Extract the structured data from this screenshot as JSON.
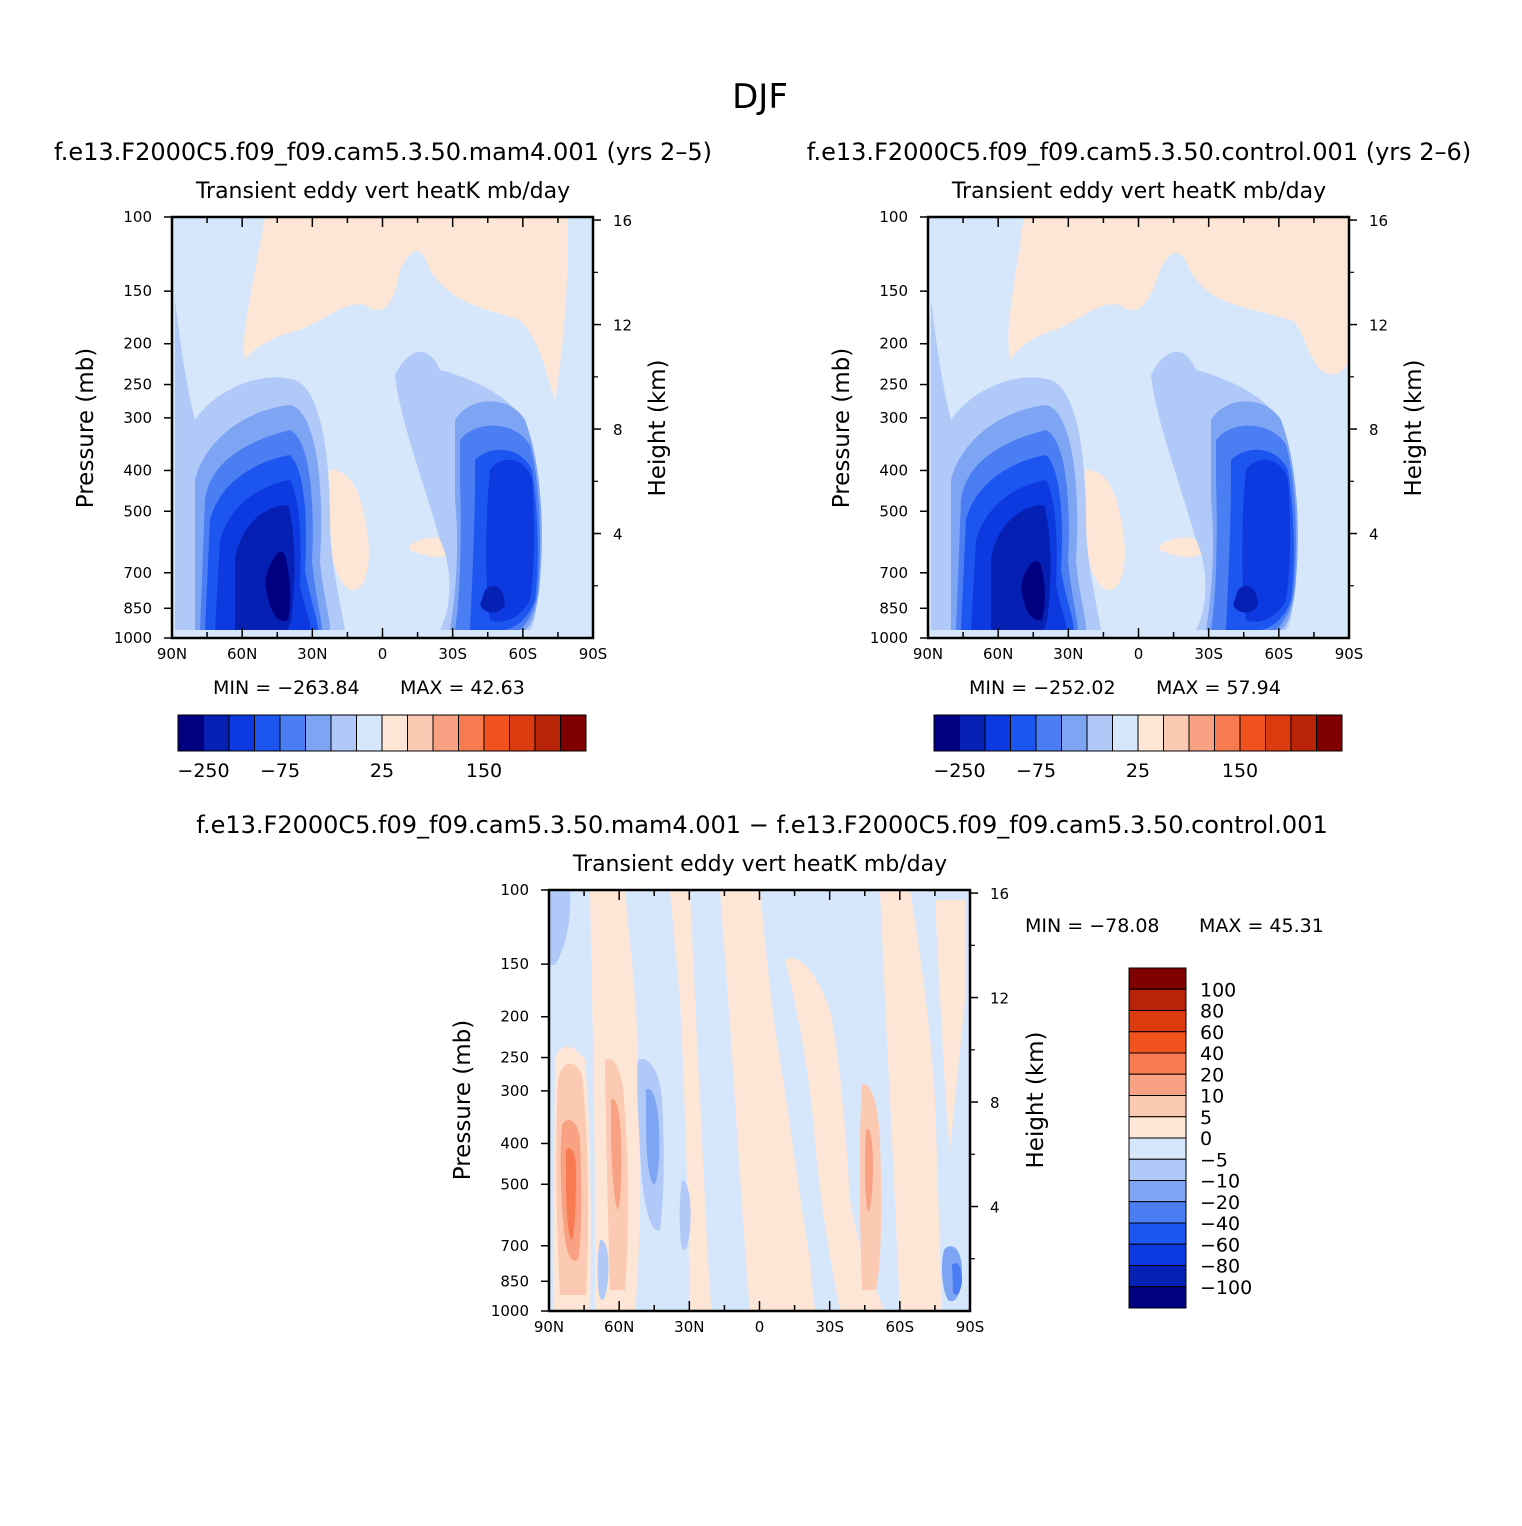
{
  "figure": {
    "title": "DJF",
    "case_a_label": "f.e13.F2000C5.f09_f09.cam5.3.50.mam4.001 (yrs 2–5)",
    "case_b_label": "f.e13.F2000C5.f09_f09.cam5.3.50.control.001 (yrs 2–6)",
    "diff_label": "f.e13.F2000C5.f09_f09.cam5.3.50.mam4.001 − f.e13.F2000C5.f09_f09.cam5.3.50.control.001"
  },
  "colors": {
    "cmap": [
      "#000081",
      "#0720b4",
      "#0c3ae0",
      "#1d55f0",
      "#4a7ef2",
      "#7ea4f4",
      "#b0c9f8",
      "#d7e7fb",
      "#fde6d5",
      "#fccab2",
      "#f9a283",
      "#f77a50",
      "#f2521e",
      "#dc3a0f",
      "#b72506",
      "#800000"
    ],
    "frame": "#000000"
  },
  "chart_data": [
    {
      "id": "mam4",
      "type": "heatmap",
      "title": "Transient eddy vert heatK mb/day",
      "xlabel": "",
      "ylabel": "Pressure (mb)",
      "ylabel_right": "Height (km)",
      "x_ticks": [
        "90N",
        "60N",
        "30N",
        "0",
        "30S",
        "60S",
        "90S"
      ],
      "y_ticks": [
        "100",
        "150",
        "200",
        "250",
        "300",
        "400",
        "500",
        "700",
        "850",
        "1000"
      ],
      "y_ticks_right": [
        "16",
        "12",
        "8",
        "4"
      ],
      "min_label": "MIN = −263.84",
      "max_label": "MAX =  42.63",
      "colorbar_labels": [
        "−250",
        "−75",
        "25",
        "150"
      ],
      "scale_min": -300,
      "scale_max": 150,
      "features": [
        {
          "lat": 47,
          "p": 700,
          "value": -260,
          "wlat": 18,
          "wp": 360
        },
        {
          "lat": -55,
          "p": 650,
          "value": -200,
          "wlat": 12,
          "wp": 380
        },
        {
          "lat": 25,
          "p": 450,
          "value": 30,
          "wlat": 6,
          "wp": 180
        }
      ]
    },
    {
      "id": "control",
      "type": "heatmap",
      "title": "Transient eddy vert heatK mb/day",
      "xlabel": "",
      "ylabel": "Pressure (mb)",
      "ylabel_right": "Height (km)",
      "x_ticks": [
        "90N",
        "60N",
        "30N",
        "0",
        "30S",
        "60S",
        "90S"
      ],
      "y_ticks": [
        "100",
        "150",
        "200",
        "250",
        "300",
        "400",
        "500",
        "700",
        "850",
        "1000"
      ],
      "y_ticks_right": [
        "16",
        "12",
        "8",
        "4"
      ],
      "min_label": "MIN = −252.02",
      "max_label": "MAX =  57.94",
      "colorbar_labels": [
        "−250",
        "−75",
        "25",
        "150"
      ],
      "scale_min": -300,
      "scale_max": 150,
      "features": [
        {
          "lat": 47,
          "p": 700,
          "value": -250,
          "wlat": 18,
          "wp": 360
        },
        {
          "lat": -55,
          "p": 650,
          "value": -195,
          "wlat": 12,
          "wp": 380
        },
        {
          "lat": 25,
          "p": 450,
          "value": 30,
          "wlat": 6,
          "wp": 180
        }
      ]
    },
    {
      "id": "diff",
      "type": "heatmap",
      "title": "Transient eddy vert heatK mb/day",
      "xlabel": "",
      "ylabel": "Pressure (mb)",
      "ylabel_right": "Height (km)",
      "x_ticks": [
        "90N",
        "60N",
        "30N",
        "0",
        "30S",
        "60S",
        "90S"
      ],
      "y_ticks": [
        "100",
        "150",
        "200",
        "250",
        "300",
        "400",
        "500",
        "700",
        "850",
        "1000"
      ],
      "y_ticks_right": [
        "16",
        "12",
        "8",
        "4"
      ],
      "min_label": "MIN = −78.08",
      "max_label": "MAX =  45.31",
      "colorbar_labels": [
        "100",
        "80",
        "60",
        "40",
        "20",
        "10",
        "5",
        "0",
        "−5",
        "−10",
        "−20",
        "−40",
        "−60",
        "−80",
        "−100"
      ],
      "scale_min": -100,
      "scale_max": 100,
      "features": [
        {
          "lat": 82,
          "p": 520,
          "value": 30,
          "wlat": 4,
          "wp": 300
        },
        {
          "lat": 63,
          "p": 550,
          "value": 18,
          "wlat": 3,
          "wp": 350
        },
        {
          "lat": 48,
          "p": 420,
          "value": -12,
          "wlat": 2,
          "wp": 120
        },
        {
          "lat": -47,
          "p": 450,
          "value": 12,
          "wlat": 2,
          "wp": 200
        },
        {
          "lat": -82,
          "p": 800,
          "value": -20,
          "wlat": 2,
          "wp": 150
        }
      ]
    }
  ]
}
